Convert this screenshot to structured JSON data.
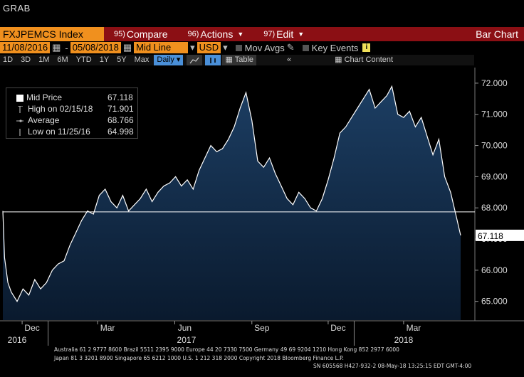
{
  "window": {
    "title": "GRAB"
  },
  "toolbar": {
    "ticker": "FXJPEMCS Index",
    "compare_num": "95)",
    "compare_label": "Compare",
    "actions_num": "96)",
    "actions_label": "Actions",
    "edit_num": "97)",
    "edit_label": "Edit",
    "chart_type": "Bar Chart"
  },
  "settings": {
    "start_date": "11/08/2016",
    "end_date": "05/08/2018",
    "line_type": "Mid Line",
    "currency": "USD",
    "mov_avgs": "Mov Avgs",
    "key_events": "Key Events"
  },
  "periods": [
    "1D",
    "3D",
    "1M",
    "6M",
    "YTD",
    "1Y",
    "5Y",
    "Max"
  ],
  "frequency": "Daily",
  "table_label": "Table",
  "chart_content_label": "Chart Content",
  "legend": {
    "mid_label": "Mid Price",
    "mid_value": "67.118",
    "high_label": "High on 02/15/18",
    "high_value": "71.901",
    "avg_label": "Average",
    "avg_value": "68.766",
    "low_label": "Low on 11/25/16",
    "low_value": "64.998"
  },
  "chart_data": {
    "type": "area",
    "series": [
      {
        "name": "Mid Price",
        "points": [
          [
            "2016-11-08",
            67.9
          ],
          [
            "2016-11-10",
            66.4
          ],
          [
            "2016-11-14",
            65.6
          ],
          [
            "2016-11-18",
            65.3
          ],
          [
            "2016-11-25",
            65.0
          ],
          [
            "2016-12-02",
            65.4
          ],
          [
            "2016-12-09",
            65.2
          ],
          [
            "2016-12-16",
            65.7
          ],
          [
            "2016-12-23",
            65.4
          ],
          [
            "2016-12-30",
            65.6
          ],
          [
            "2017-01-06",
            66.0
          ],
          [
            "2017-01-13",
            66.2
          ],
          [
            "2017-01-20",
            66.3
          ],
          [
            "2017-01-27",
            66.8
          ],
          [
            "2017-02-03",
            67.2
          ],
          [
            "2017-02-10",
            67.6
          ],
          [
            "2017-02-17",
            67.9
          ],
          [
            "2017-02-24",
            67.8
          ],
          [
            "2017-03-03",
            68.4
          ],
          [
            "2017-03-10",
            68.6
          ],
          [
            "2017-03-17",
            68.2
          ],
          [
            "2017-03-24",
            68.0
          ],
          [
            "2017-03-31",
            68.4
          ],
          [
            "2017-04-07",
            67.9
          ],
          [
            "2017-04-14",
            68.1
          ],
          [
            "2017-04-21",
            68.3
          ],
          [
            "2017-04-28",
            68.6
          ],
          [
            "2017-05-05",
            68.2
          ],
          [
            "2017-05-12",
            68.5
          ],
          [
            "2017-05-19",
            68.7
          ],
          [
            "2017-05-26",
            68.8
          ],
          [
            "2017-06-02",
            69.0
          ],
          [
            "2017-06-09",
            68.7
          ],
          [
            "2017-06-16",
            68.9
          ],
          [
            "2017-06-23",
            68.6
          ],
          [
            "2017-06-30",
            69.2
          ],
          [
            "2017-07-07",
            69.6
          ],
          [
            "2017-07-14",
            70.0
          ],
          [
            "2017-07-21",
            69.8
          ],
          [
            "2017-07-28",
            69.9
          ],
          [
            "2017-08-04",
            70.2
          ],
          [
            "2017-08-11",
            70.6
          ],
          [
            "2017-08-18",
            71.2
          ],
          [
            "2017-08-25",
            71.7
          ],
          [
            "2017-09-01",
            70.8
          ],
          [
            "2017-09-08",
            69.5
          ],
          [
            "2017-09-15",
            69.3
          ],
          [
            "2017-09-22",
            69.6
          ],
          [
            "2017-09-29",
            69.1
          ],
          [
            "2017-10-06",
            68.7
          ],
          [
            "2017-10-13",
            68.3
          ],
          [
            "2017-10-20",
            68.1
          ],
          [
            "2017-10-27",
            68.5
          ],
          [
            "2017-11-03",
            68.3
          ],
          [
            "2017-11-10",
            68.0
          ],
          [
            "2017-11-17",
            67.9
          ],
          [
            "2017-11-24",
            68.3
          ],
          [
            "2017-12-01",
            68.9
          ],
          [
            "2017-12-08",
            69.6
          ],
          [
            "2017-12-15",
            70.4
          ],
          [
            "2017-12-22",
            70.6
          ],
          [
            "2017-12-29",
            70.9
          ],
          [
            "2018-01-05",
            71.2
          ],
          [
            "2018-01-12",
            71.5
          ],
          [
            "2018-01-19",
            71.8
          ],
          [
            "2018-01-26",
            71.2
          ],
          [
            "2018-02-02",
            71.4
          ],
          [
            "2018-02-09",
            71.6
          ],
          [
            "2018-02-15",
            71.9
          ],
          [
            "2018-02-22",
            71.0
          ],
          [
            "2018-03-01",
            70.9
          ],
          [
            "2018-03-08",
            71.1
          ],
          [
            "2018-03-15",
            70.6
          ],
          [
            "2018-03-22",
            70.9
          ],
          [
            "2018-03-29",
            70.3
          ],
          [
            "2018-04-05",
            69.7
          ],
          [
            "2018-04-12",
            70.2
          ],
          [
            "2018-04-19",
            69.0
          ],
          [
            "2018-04-26",
            68.5
          ],
          [
            "2018-05-03",
            67.7
          ],
          [
            "2018-05-08",
            67.118
          ]
        ]
      }
    ],
    "x_range": [
      "2016-11-08",
      "2018-05-08"
    ],
    "ylim": [
      64.4,
      72.5
    ],
    "yticks": [
      "65.000",
      "66.000",
      "67.000",
      "68.000",
      "69.000",
      "70.000",
      "71.000",
      "72.000"
    ],
    "xticks_months": [
      {
        "date": "2016-12-01",
        "label": "Dec"
      },
      {
        "date": "2017-03-01",
        "label": "Mar"
      },
      {
        "date": "2017-06-01",
        "label": "Jun"
      },
      {
        "date": "2017-09-01",
        "label": "Sep"
      },
      {
        "date": "2017-12-01",
        "label": "Dec"
      },
      {
        "date": "2018-03-01",
        "label": "Mar"
      }
    ],
    "xticks_years": [
      {
        "date": "2016-11-25",
        "label": "2016"
      },
      {
        "date": "2017-06-15",
        "label": "2017"
      },
      {
        "date": "2018-03-01",
        "label": "2018"
      }
    ],
    "reference_line": 67.87,
    "last_label": "67.118",
    "colors": {
      "fill_top": "#1c3e63",
      "fill_bottom": "#0a1a2e",
      "line": "#ffffff",
      "bg": "#000000"
    }
  },
  "footer": {
    "line1": "Australia 61 2 9777 8600 Brazil 5511 2395 9000 Europe 44 20 7330 7500 Germany 49 69 9204 1210 Hong Kong 852 2977 6000",
    "line2": "Japan 81 3 3201 8900       Singapore 65 6212 1000       U.S. 1 212 318 2000             Copyright 2018 Bloomberg Finance L.P.",
    "line3": "SN 605568 H427-932-2 08-May-18 13:25:15 EDT  GMT-4:00"
  }
}
